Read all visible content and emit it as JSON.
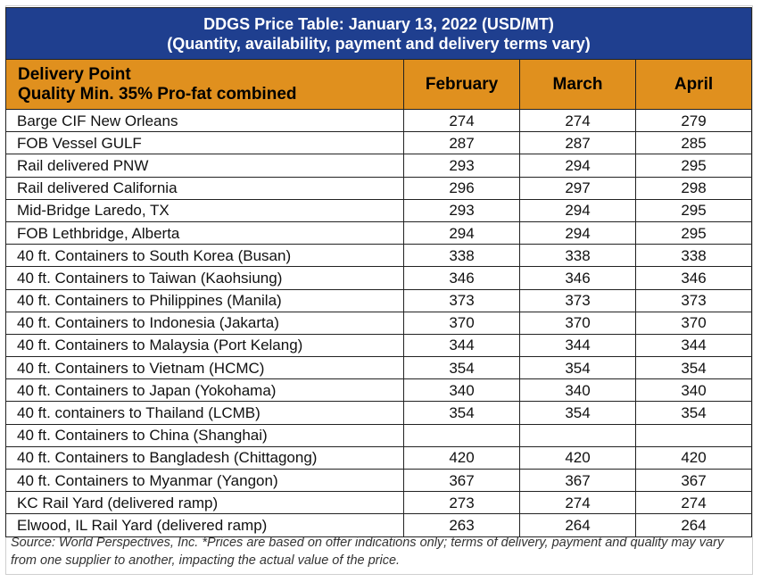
{
  "colors": {
    "title_bg": "#1f3f8f",
    "header_bg": "#e0901e",
    "title_text": "#ffffff"
  },
  "table": {
    "title_bold": "DDGS Price Table: January 13, 2022",
    "title_units": "(USD/MT)",
    "subtitle": "(Quantity, availability, payment and delivery terms vary)",
    "header_delivery_line1": "Delivery Point",
    "header_delivery_line2": "Quality Min. 35% Pro-fat combined",
    "months": [
      "February",
      "March",
      "April"
    ],
    "rows": [
      {
        "location": "Barge CIF New Orleans",
        "february": "274",
        "march": "274",
        "april": "279"
      },
      {
        "location": "FOB Vessel GULF",
        "february": "287",
        "march": "287",
        "april": "285"
      },
      {
        "location": "Rail delivered PNW",
        "february": "293",
        "march": "294",
        "april": "295"
      },
      {
        "location": "Rail delivered California",
        "february": "296",
        "march": "297",
        "april": "298"
      },
      {
        "location": "Mid-Bridge Laredo, TX",
        "february": "293",
        "march": "294",
        "april": "295"
      },
      {
        "location": "FOB Lethbridge, Alberta",
        "february": "294",
        "march": "294",
        "april": "295"
      },
      {
        "location": "40 ft. Containers to South Korea (Busan)",
        "february": "338",
        "march": "338",
        "april": "338"
      },
      {
        "location": "40 ft. Containers to Taiwan (Kaohsiung)",
        "february": "346",
        "march": "346",
        "april": "346"
      },
      {
        "location": "40 ft. Containers to Philippines (Manila)",
        "february": "373",
        "march": "373",
        "april": "373"
      },
      {
        "location": "40 ft. Containers to Indonesia (Jakarta)",
        "february": "370",
        "march": "370",
        "april": "370"
      },
      {
        "location": "40 ft. Containers to Malaysia (Port Kelang)",
        "february": "344",
        "march": "344",
        "april": "344"
      },
      {
        "location": "40 ft. Containers to Vietnam (HCMC)",
        "february": "354",
        "march": "354",
        "april": "354"
      },
      {
        "location": "40 ft. Containers to Japan (Yokohama)",
        "february": "340",
        "march": "340",
        "april": "340"
      },
      {
        "location": "40 ft. containers to Thailand (LCMB)",
        "february": "354",
        "march": "354",
        "april": "354"
      },
      {
        "location": "40 ft. Containers to China (Shanghai)",
        "february": "",
        "march": "",
        "april": ""
      },
      {
        "location": "40 ft. Containers to Bangladesh (Chittagong)",
        "february": "420",
        "march": "420",
        "april": "420"
      },
      {
        "location": "40 ft. Containers to Myanmar (Yangon)",
        "february": "367",
        "march": "367",
        "april": "367"
      },
      {
        "location": "KC Rail Yard (delivered ramp)",
        "february": "273",
        "march": "274",
        "april": "274"
      },
      {
        "location": "Elwood, IL Rail Yard (delivered ramp)",
        "february": "263",
        "march": "264",
        "april": "264"
      }
    ],
    "source_note": "Source: World Perspectives, Inc. *Prices are based on offer indications only; terms of delivery, payment and quality may vary from one supplier to another, impacting the actual value of the price."
  },
  "chart_data": {
    "type": "table",
    "title": "DDGS Price Table: January 13, 2022 (USD/MT)",
    "subtitle": "(Quantity, availability, payment and delivery terms vary)",
    "columns": [
      "Delivery Point Quality Min. 35% Pro-fat combined",
      "February",
      "March",
      "April"
    ],
    "rows": [
      [
        "Barge CIF New Orleans",
        274,
        274,
        279
      ],
      [
        "FOB Vessel GULF",
        287,
        287,
        285
      ],
      [
        "Rail delivered PNW",
        293,
        294,
        295
      ],
      [
        "Rail delivered California",
        296,
        297,
        298
      ],
      [
        "Mid-Bridge Laredo, TX",
        293,
        294,
        295
      ],
      [
        "FOB Lethbridge, Alberta",
        294,
        294,
        295
      ],
      [
        "40 ft. Containers to South Korea (Busan)",
        338,
        338,
        338
      ],
      [
        "40 ft. Containers to Taiwan (Kaohsiung)",
        346,
        346,
        346
      ],
      [
        "40 ft. Containers to Philippines (Manila)",
        373,
        373,
        373
      ],
      [
        "40 ft. Containers to Indonesia (Jakarta)",
        370,
        370,
        370
      ],
      [
        "40 ft. Containers to Malaysia (Port Kelang)",
        344,
        344,
        344
      ],
      [
        "40 ft. Containers to Vietnam (HCMC)",
        354,
        354,
        354
      ],
      [
        "40 ft. Containers to Japan (Yokohama)",
        340,
        340,
        340
      ],
      [
        "40 ft. containers to Thailand (LCMB)",
        354,
        354,
        354
      ],
      [
        "40 ft. Containers to China (Shanghai)",
        null,
        null,
        null
      ],
      [
        "40 ft. Containers to Bangladesh (Chittagong)",
        420,
        420,
        420
      ],
      [
        "40 ft. Containers to Myanmar (Yangon)",
        367,
        367,
        367
      ],
      [
        "KC Rail Yard (delivered ramp)",
        273,
        274,
        274
      ],
      [
        "Elwood, IL Rail Yard (delivered ramp)",
        263,
        264,
        264
      ]
    ]
  }
}
